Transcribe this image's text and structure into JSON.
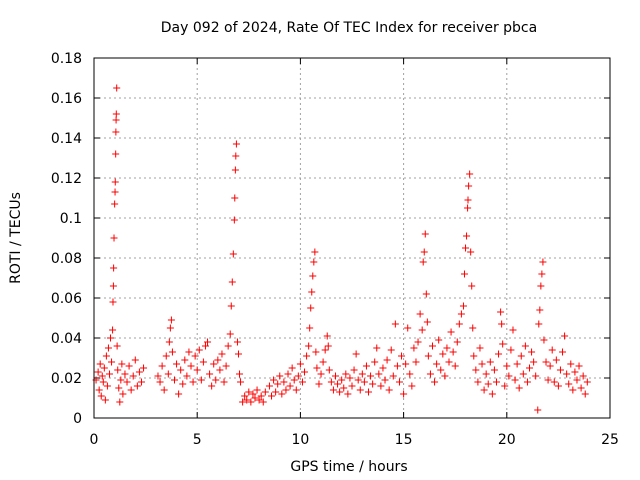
{
  "chart_data": {
    "type": "scatter",
    "title": "Day 092 of 2024, Rate Of TEC Index for receiver pbca",
    "xlabel": "GPS time / hours",
    "ylabel": "ROTI / TECUs",
    "xlim": [
      0,
      25
    ],
    "ylim": [
      0,
      0.18
    ],
    "xticks": [
      0,
      5,
      10,
      15,
      20,
      25
    ],
    "xtick_labels": [
      "0",
      "5",
      "10",
      "15",
      "20",
      "25"
    ],
    "yticks": [
      0,
      0.02,
      0.04,
      0.06,
      0.08,
      0.1,
      0.12,
      0.14,
      0.16,
      0.18
    ],
    "ytick_labels": [
      "0",
      "0.02",
      "0.04",
      "0.06",
      "0.08",
      "0.1",
      "0.12",
      "0.14",
      "0.16",
      "0.18"
    ],
    "grid": true,
    "marker": "+",
    "color": "#ff0000",
    "series": [
      {
        "name": "ROTI",
        "points": [
          [
            0.1,
            0.019
          ],
          [
            0.2,
            0.023
          ],
          [
            0.25,
            0.014
          ],
          [
            0.3,
            0.027
          ],
          [
            0.35,
            0.011
          ],
          [
            0.4,
            0.021
          ],
          [
            0.45,
            0.018
          ],
          [
            0.5,
            0.025
          ],
          [
            0.55,
            0.009
          ],
          [
            0.6,
            0.031
          ],
          [
            0.65,
            0.016
          ],
          [
            0.7,
            0.035
          ],
          [
            0.75,
            0.022
          ],
          [
            0.8,
            0.04
          ],
          [
            0.85,
            0.028
          ],
          [
            0.9,
            0.044
          ],
          [
            0.92,
            0.058
          ],
          [
            0.94,
            0.066
          ],
          [
            0.95,
            0.075
          ],
          [
            0.97,
            0.09
          ],
          [
            1.0,
            0.107
          ],
          [
            1.02,
            0.113
          ],
          [
            1.03,
            0.118
          ],
          [
            1.05,
            0.132
          ],
          [
            1.06,
            0.143
          ],
          [
            1.07,
            0.149
          ],
          [
            1.08,
            0.152
          ],
          [
            1.1,
            0.165
          ],
          [
            1.12,
            0.036
          ],
          [
            1.15,
            0.024
          ],
          [
            1.2,
            0.015
          ],
          [
            1.25,
            0.008
          ],
          [
            1.3,
            0.019
          ],
          [
            1.35,
            0.027
          ],
          [
            1.4,
            0.012
          ],
          [
            1.5,
            0.022
          ],
          [
            1.6,
            0.018
          ],
          [
            1.7,
            0.026
          ],
          [
            1.8,
            0.014
          ],
          [
            1.9,
            0.021
          ],
          [
            2.0,
            0.029
          ],
          [
            2.1,
            0.016
          ],
          [
            2.2,
            0.023
          ],
          [
            2.3,
            0.018
          ],
          [
            2.4,
            0.025
          ],
          [
            3.1,
            0.021
          ],
          [
            3.2,
            0.018
          ],
          [
            3.3,
            0.026
          ],
          [
            3.4,
            0.014
          ],
          [
            3.5,
            0.031
          ],
          [
            3.6,
            0.022
          ],
          [
            3.65,
            0.038
          ],
          [
            3.7,
            0.045
          ],
          [
            3.75,
            0.049
          ],
          [
            3.8,
            0.033
          ],
          [
            3.9,
            0.019
          ],
          [
            4.0,
            0.027
          ],
          [
            4.1,
            0.012
          ],
          [
            4.2,
            0.024
          ],
          [
            4.3,
            0.017
          ],
          [
            4.4,
            0.029
          ],
          [
            4.5,
            0.021
          ],
          [
            4.6,
            0.033
          ],
          [
            4.7,
            0.026
          ],
          [
            4.8,
            0.018
          ],
          [
            4.9,
            0.031
          ],
          [
            5.0,
            0.024
          ],
          [
            5.1,
            0.034
          ],
          [
            5.2,
            0.019
          ],
          [
            5.3,
            0.028
          ],
          [
            5.4,
            0.036
          ],
          [
            5.5,
            0.038
          ],
          [
            5.6,
            0.022
          ],
          [
            5.7,
            0.016
          ],
          [
            5.8,
            0.027
          ],
          [
            5.9,
            0.019
          ],
          [
            6.0,
            0.029
          ],
          [
            6.1,
            0.024
          ],
          [
            6.2,
            0.032
          ],
          [
            6.3,
            0.018
          ],
          [
            6.4,
            0.026
          ],
          [
            6.5,
            0.036
          ],
          [
            6.6,
            0.042
          ],
          [
            6.65,
            0.056
          ],
          [
            6.7,
            0.068
          ],
          [
            6.75,
            0.082
          ],
          [
            6.8,
            0.099
          ],
          [
            6.82,
            0.11
          ],
          [
            6.85,
            0.124
          ],
          [
            6.87,
            0.131
          ],
          [
            6.9,
            0.137
          ],
          [
            6.95,
            0.038
          ],
          [
            7.0,
            0.032
          ],
          [
            7.05,
            0.022
          ],
          [
            7.1,
            0.018
          ],
          [
            7.2,
            0.008
          ],
          [
            7.3,
            0.011
          ],
          [
            7.4,
            0.009
          ],
          [
            7.5,
            0.013
          ],
          [
            7.6,
            0.008
          ],
          [
            7.7,
            0.012
          ],
          [
            7.8,
            0.01
          ],
          [
            7.9,
            0.014
          ],
          [
            8.0,
            0.009
          ],
          [
            8.1,
            0.011
          ],
          [
            8.2,
            0.008
          ],
          [
            8.3,
            0.013
          ],
          [
            8.5,
            0.016
          ],
          [
            8.6,
            0.011
          ],
          [
            8.7,
            0.019
          ],
          [
            8.8,
            0.013
          ],
          [
            8.9,
            0.017
          ],
          [
            9.0,
            0.021
          ],
          [
            9.1,
            0.012
          ],
          [
            9.2,
            0.018
          ],
          [
            9.3,
            0.014
          ],
          [
            9.4,
            0.022
          ],
          [
            9.5,
            0.016
          ],
          [
            9.6,
            0.025
          ],
          [
            9.7,
            0.019
          ],
          [
            9.8,
            0.014
          ],
          [
            9.9,
            0.021
          ],
          [
            10.0,
            0.027
          ],
          [
            10.1,
            0.018
          ],
          [
            10.2,
            0.023
          ],
          [
            10.3,
            0.031
          ],
          [
            10.4,
            0.036
          ],
          [
            10.45,
            0.045
          ],
          [
            10.5,
            0.055
          ],
          [
            10.55,
            0.063
          ],
          [
            10.6,
            0.071
          ],
          [
            10.65,
            0.078
          ],
          [
            10.7,
            0.083
          ],
          [
            10.75,
            0.033
          ],
          [
            10.8,
            0.025
          ],
          [
            10.9,
            0.017
          ],
          [
            11.0,
            0.022
          ],
          [
            11.1,
            0.028
          ],
          [
            11.2,
            0.034
          ],
          [
            11.3,
            0.041
          ],
          [
            11.35,
            0.036
          ],
          [
            11.4,
            0.024
          ],
          [
            11.5,
            0.018
          ],
          [
            11.6,
            0.014
          ],
          [
            11.7,
            0.021
          ],
          [
            11.8,
            0.017
          ],
          [
            11.9,
            0.013
          ],
          [
            12.0,
            0.019
          ],
          [
            12.1,
            0.015
          ],
          [
            12.2,
            0.022
          ],
          [
            12.3,
            0.012
          ],
          [
            12.4,
            0.02
          ],
          [
            12.5,
            0.016
          ],
          [
            12.6,
            0.024
          ],
          [
            12.7,
            0.032
          ],
          [
            12.8,
            0.019
          ],
          [
            12.9,
            0.014
          ],
          [
            13.0,
            0.022
          ],
          [
            13.1,
            0.018
          ],
          [
            13.2,
            0.026
          ],
          [
            13.3,
            0.013
          ],
          [
            13.4,
            0.021
          ],
          [
            13.5,
            0.017
          ],
          [
            13.6,
            0.028
          ],
          [
            13.7,
            0.035
          ],
          [
            13.8,
            0.022
          ],
          [
            13.9,
            0.016
          ],
          [
            14.0,
            0.025
          ],
          [
            14.1,
            0.019
          ],
          [
            14.2,
            0.029
          ],
          [
            14.3,
            0.014
          ],
          [
            14.4,
            0.034
          ],
          [
            14.5,
            0.021
          ],
          [
            14.6,
            0.047
          ],
          [
            14.7,
            0.026
          ],
          [
            14.8,
            0.018
          ],
          [
            14.9,
            0.031
          ],
          [
            15.0,
            0.012
          ],
          [
            15.1,
            0.027
          ],
          [
            15.2,
            0.045
          ],
          [
            15.3,
            0.022
          ],
          [
            15.4,
            0.016
          ],
          [
            15.5,
            0.035
          ],
          [
            15.6,
            0.028
          ],
          [
            15.7,
            0.038
          ],
          [
            15.8,
            0.052
          ],
          [
            15.9,
            0.044
          ],
          [
            15.95,
            0.078
          ],
          [
            16.0,
            0.083
          ],
          [
            16.05,
            0.092
          ],
          [
            16.1,
            0.062
          ],
          [
            16.15,
            0.048
          ],
          [
            16.2,
            0.031
          ],
          [
            16.3,
            0.022
          ],
          [
            16.4,
            0.036
          ],
          [
            16.5,
            0.018
          ],
          [
            16.6,
            0.027
          ],
          [
            16.7,
            0.039
          ],
          [
            16.8,
            0.024
          ],
          [
            16.9,
            0.032
          ],
          [
            17.0,
            0.021
          ],
          [
            17.1,
            0.035
          ],
          [
            17.2,
            0.028
          ],
          [
            17.3,
            0.043
          ],
          [
            17.4,
            0.033
          ],
          [
            17.5,
            0.026
          ],
          [
            17.6,
            0.038
          ],
          [
            17.7,
            0.047
          ],
          [
            17.8,
            0.052
          ],
          [
            17.9,
            0.056
          ],
          [
            17.95,
            0.072
          ],
          [
            18.0,
            0.085
          ],
          [
            18.05,
            0.091
          ],
          [
            18.1,
            0.105
          ],
          [
            18.12,
            0.109
          ],
          [
            18.15,
            0.116
          ],
          [
            18.2,
            0.122
          ],
          [
            18.25,
            0.083
          ],
          [
            18.3,
            0.066
          ],
          [
            18.35,
            0.045
          ],
          [
            18.4,
            0.031
          ],
          [
            18.5,
            0.024
          ],
          [
            18.6,
            0.018
          ],
          [
            18.7,
            0.035
          ],
          [
            18.8,
            0.027
          ],
          [
            18.9,
            0.014
          ],
          [
            19.0,
            0.022
          ],
          [
            19.1,
            0.017
          ],
          [
            19.2,
            0.028
          ],
          [
            19.3,
            0.012
          ],
          [
            19.4,
            0.024
          ],
          [
            19.5,
            0.018
          ],
          [
            19.6,
            0.032
          ],
          [
            19.7,
            0.053
          ],
          [
            19.75,
            0.047
          ],
          [
            19.8,
            0.037
          ],
          [
            19.9,
            0.016
          ],
          [
            20.0,
            0.026
          ],
          [
            20.1,
            0.021
          ],
          [
            20.2,
            0.034
          ],
          [
            20.3,
            0.044
          ],
          [
            20.4,
            0.019
          ],
          [
            20.5,
            0.027
          ],
          [
            20.6,
            0.015
          ],
          [
            20.7,
            0.031
          ],
          [
            20.8,
            0.022
          ],
          [
            20.9,
            0.036
          ],
          [
            21.0,
            0.018
          ],
          [
            21.1,
            0.025
          ],
          [
            21.2,
            0.033
          ],
          [
            21.3,
            0.028
          ],
          [
            21.4,
            0.021
          ],
          [
            21.5,
            0.004
          ],
          [
            21.55,
            0.047
          ],
          [
            21.6,
            0.054
          ],
          [
            21.65,
            0.066
          ],
          [
            21.7,
            0.072
          ],
          [
            21.75,
            0.078
          ],
          [
            21.8,
            0.039
          ],
          [
            21.9,
            0.028
          ],
          [
            22.0,
            0.019
          ],
          [
            22.1,
            0.026
          ],
          [
            22.2,
            0.034
          ],
          [
            22.3,
            0.018
          ],
          [
            22.4,
            0.029
          ],
          [
            22.5,
            0.016
          ],
          [
            22.6,
            0.024
          ],
          [
            22.7,
            0.033
          ],
          [
            22.8,
            0.041
          ],
          [
            22.9,
            0.022
          ],
          [
            23.0,
            0.017
          ],
          [
            23.1,
            0.027
          ],
          [
            23.2,
            0.014
          ],
          [
            23.3,
            0.023
          ],
          [
            23.4,
            0.019
          ],
          [
            23.5,
            0.026
          ],
          [
            23.6,
            0.015
          ],
          [
            23.7,
            0.021
          ],
          [
            23.8,
            0.012
          ],
          [
            23.9,
            0.018
          ]
        ]
      }
    ]
  }
}
